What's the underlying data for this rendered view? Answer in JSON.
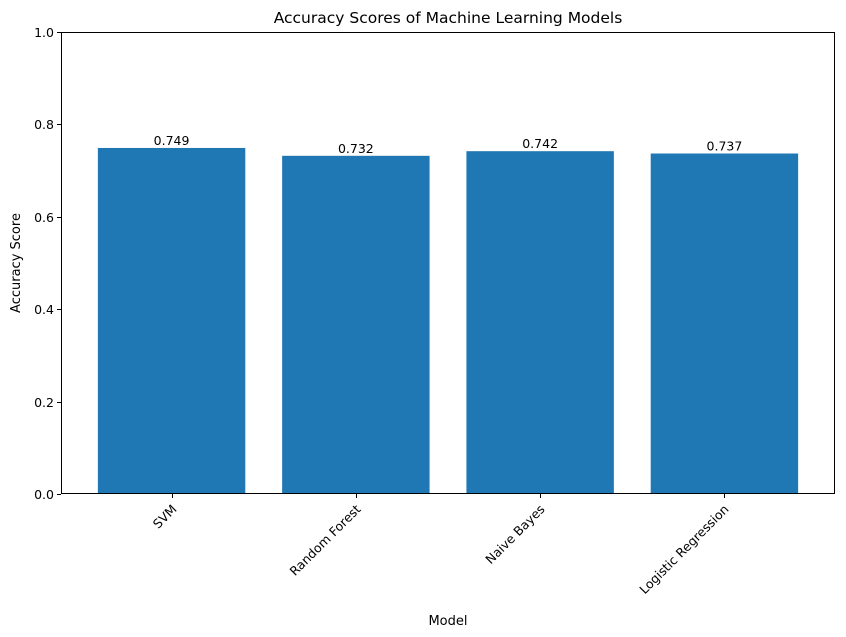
{
  "chart_data": {
    "type": "bar",
    "title": "Accuracy Scores of Machine Learning Models",
    "xlabel": "Model",
    "ylabel": "Accuracy Score",
    "categories": [
      "SVM",
      "Random Forest",
      "Naive Bayes",
      "Logistic Regression"
    ],
    "values": [
      0.749,
      0.732,
      0.742,
      0.737
    ],
    "value_labels": [
      "0.749",
      "0.732",
      "0.742",
      "0.737"
    ],
    "ylim": [
      0,
      1.0
    ],
    "yticks": [
      0.0,
      0.2,
      0.4,
      0.6,
      0.8,
      1.0
    ],
    "ytick_labels": [
      "0.0",
      "0.2",
      "0.4",
      "0.6",
      "0.8",
      "1.0"
    ],
    "xtick_rotation_deg": 45,
    "grid": false,
    "legend": false,
    "bar_color": "#1f77b4"
  }
}
